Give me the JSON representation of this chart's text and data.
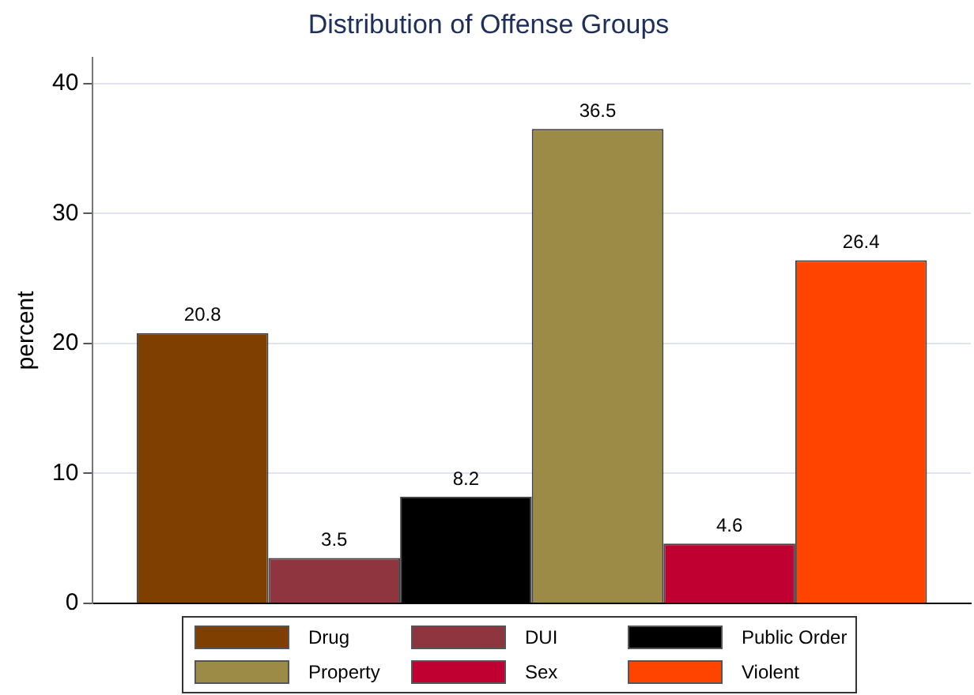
{
  "chart_data": {
    "type": "bar",
    "title": "Distribution of Offense Groups",
    "ylabel": "percent",
    "categories": [
      null
    ],
    "series": [
      {
        "name": "Drug",
        "color": "#7f3f00",
        "values": [
          20.8
        ]
      },
      {
        "name": "DUI",
        "color": "#8f353f",
        "values": [
          3.5
        ]
      },
      {
        "name": "Public Order",
        "color": "#000000",
        "values": [
          8.2
        ]
      },
      {
        "name": "Property",
        "color": "#9c8a47",
        "values": [
          36.5
        ]
      },
      {
        "name": "Sex",
        "color": "#c00030",
        "values": [
          4.6
        ]
      },
      {
        "name": "Violent",
        "color": "#ff4400",
        "values": [
          26.4
        ]
      }
    ],
    "ylim": [
      0,
      42
    ],
    "yticks": [
      0,
      10,
      20,
      30,
      40
    ],
    "grid": "y",
    "legend": "bottom",
    "data_labels": true
  }
}
